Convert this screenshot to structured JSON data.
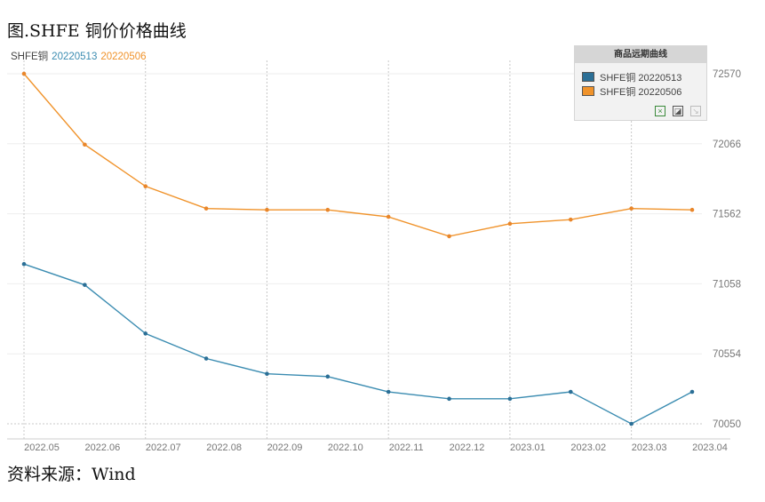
{
  "figure_title": "图.SHFE 铜价价格曲线",
  "source_note": "资料来源：Wind",
  "series_header": {
    "label": "SHFE铜",
    "s1": "20220513",
    "s2": "20220506"
  },
  "legend": {
    "title": "商品远期曲线",
    "items": [
      "SHFE铜 20220513",
      "SHFE铜 20220506"
    ]
  },
  "chart_data": {
    "type": "line",
    "categories": [
      "2022.05",
      "2022.06",
      "2022.07",
      "2022.08",
      "2022.09",
      "2022.10",
      "2022.11",
      "2022.12",
      "2023.01",
      "2023.02",
      "2023.03",
      "2023.04"
    ],
    "ylim": [
      70050,
      72570
    ],
    "yticks": [
      70050,
      70554,
      71058,
      71562,
      72066,
      72570
    ],
    "grid": true,
    "legend_position": "top-right",
    "series": [
      {
        "name": "SHFE铜 20220513",
        "color": "#3b8cb1",
        "values": [
          71200,
          71050,
          70700,
          70520,
          70410,
          70390,
          70280,
          70230,
          70230,
          70280,
          70050,
          70280
        ]
      },
      {
        "name": "SHFE铜 20220506",
        "color": "#f0932b",
        "values": [
          72570,
          72060,
          71760,
          71600,
          71590,
          71590,
          71540,
          71400,
          71490,
          71520,
          71600,
          71590
        ]
      }
    ]
  }
}
